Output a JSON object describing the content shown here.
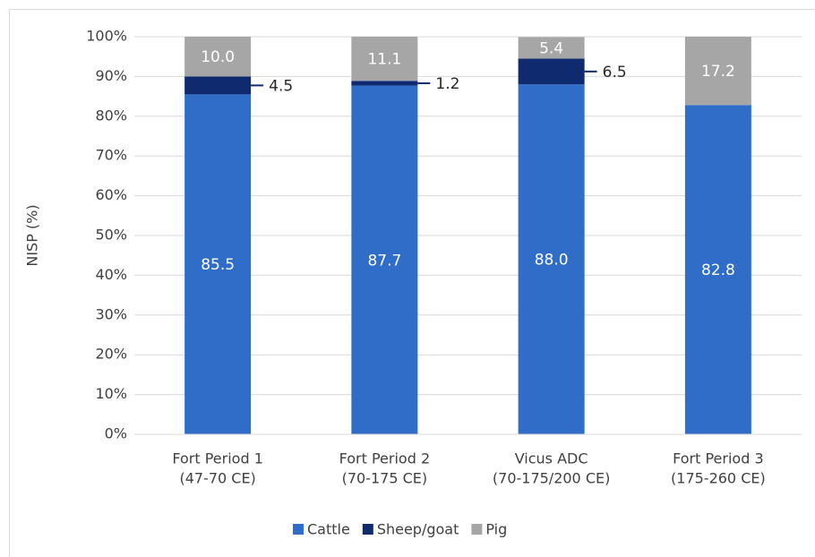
{
  "chart_data": {
    "type": "stacked_bar",
    "y_axis_label": "NISP (%)",
    "categories": [
      [
        "Fort Period 1",
        "(47-70 CE)"
      ],
      [
        "Fort Period 2",
        "(70-175 CE)"
      ],
      [
        "Vicus ADC",
        "(70-175/200 CE)"
      ],
      [
        "Fort Period 3",
        "(175-260 CE)"
      ]
    ],
    "series": [
      {
        "name": "Cattle",
        "color": "#2f6dc8",
        "values": [
          85.5,
          87.7,
          88.0,
          82.8
        ],
        "value_labels": [
          "85.5",
          "87.7",
          "88.0",
          "82.8"
        ]
      },
      {
        "name": "Sheep/goat",
        "color": "#0f2a6e",
        "values": [
          4.5,
          1.2,
          6.5,
          null
        ],
        "value_labels": [
          "4.5",
          "1.2",
          "6.5",
          null
        ]
      },
      {
        "name": "Pig",
        "color": "#a6a6a6",
        "values": [
          10.0,
          11.1,
          5.4,
          17.2
        ],
        "value_labels": [
          "10.0",
          "11.1",
          "5.4",
          "17.2"
        ]
      }
    ],
    "ylim": [
      0,
      100
    ],
    "yticks": [
      {
        "value": 0,
        "label": "0%"
      },
      {
        "value": 10,
        "label": "10%"
      },
      {
        "value": 20,
        "label": "20%"
      },
      {
        "value": 30,
        "label": "30%"
      },
      {
        "value": 40,
        "label": "40%"
      },
      {
        "value": 50,
        "label": "50%"
      },
      {
        "value": 60,
        "label": "60%"
      },
      {
        "value": 70,
        "label": "70%"
      },
      {
        "value": 80,
        "label": "80%"
      },
      {
        "value": 90,
        "label": "90%"
      },
      {
        "value": 100,
        "label": "100%"
      }
    ],
    "grid": true,
    "legend": "bottom"
  }
}
